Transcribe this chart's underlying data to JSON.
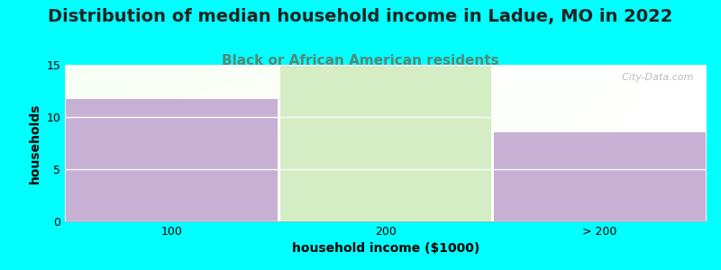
{
  "title": "Distribution of median household income in Ladue, MO in 2022",
  "subtitle": "Black or African American residents",
  "xlabel": "household income ($1000)",
  "ylabel": "households",
  "categories": [
    "100",
    "200",
    "> 200"
  ],
  "values": [
    11.7,
    15,
    8.5
  ],
  "bar_colors": [
    "#c8afd4",
    "#d4edc4",
    "#c8afd4"
  ],
  "ylim": [
    0,
    15
  ],
  "yticks": [
    0,
    5,
    10,
    15
  ],
  "background_color": "#00ffff",
  "title_fontsize": 14,
  "subtitle_fontsize": 11,
  "label_fontsize": 10,
  "tick_fontsize": 9,
  "subtitle_color": "#558877",
  "watermark": "  City-Data.com"
}
